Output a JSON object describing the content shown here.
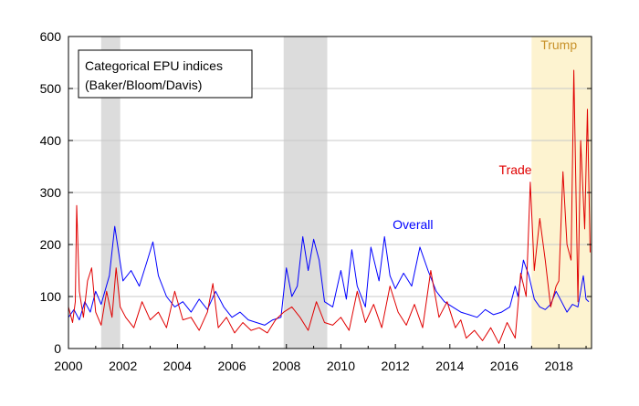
{
  "chart_data": {
    "type": "line",
    "title": "",
    "xlabel": "",
    "ylabel": "",
    "legend_box": {
      "line1": "Categorical EPU indices",
      "line2": "(Baker/Bloom/Davis)"
    },
    "xlim": [
      2000,
      2019.2
    ],
    "ylim": [
      0,
      600
    ],
    "x_ticks": [
      "2000",
      "2002",
      "2004",
      "2006",
      "2008",
      "2010",
      "2012",
      "2014",
      "2016",
      "2018"
    ],
    "y_ticks": [
      "0",
      "100",
      "200",
      "300",
      "400",
      "500",
      "600"
    ],
    "grid": "horizontal",
    "recession_shading": [
      {
        "start": 2001.2,
        "end": 2001.9,
        "color": "#dcdcdc"
      },
      {
        "start": 2007.9,
        "end": 2009.5,
        "color": "#dcdcdc"
      }
    ],
    "regime_shading": {
      "start": 2017.0,
      "end": 2019.2,
      "color": "#fdf3d0",
      "label": "Trump",
      "label_color": "#c8922a"
    },
    "annotations": [
      {
        "text": "Overall",
        "color": "#0000ff",
        "x": 2011.9,
        "y": 230
      },
      {
        "text": "Trade",
        "color": "#e00000",
        "x": 2015.8,
        "y": 335
      }
    ],
    "series": [
      {
        "color": "#0000ff",
        "x": [
          2000.0,
          2000.2,
          2000.4,
          2000.6,
          2000.8,
          2001.0,
          2001.2,
          2001.5,
          2001.7,
          2001.8,
          2002.0,
          2002.3,
          2002.6,
          2002.9,
          2003.1,
          2003.3,
          2003.6,
          2003.9,
          2004.2,
          2004.5,
          2004.8,
          2005.1,
          2005.4,
          2005.7,
          2006.0,
          2006.3,
          2006.6,
          2006.9,
          2007.2,
          2007.5,
          2007.8,
          2008.0,
          2008.2,
          2008.4,
          2008.6,
          2008.8,
          2009.0,
          2009.2,
          2009.4,
          2009.7,
          2010.0,
          2010.2,
          2010.4,
          2010.6,
          2010.9,
          2011.1,
          2011.4,
          2011.6,
          2011.8,
          2012.0,
          2012.3,
          2012.6,
          2012.9,
          2013.2,
          2013.5,
          2013.8,
          2014.1,
          2014.4,
          2014.7,
          2015.0,
          2015.3,
          2015.6,
          2015.9,
          2016.2,
          2016.4,
          2016.5,
          2016.7,
          2016.9,
          2017.1,
          2017.3,
          2017.5,
          2017.7,
          2017.9,
          2018.1,
          2018.3,
          2018.5,
          2018.7,
          2018.9,
          2019.0,
          2019.1
        ],
        "values": [
          60,
          75,
          55,
          90,
          70,
          110,
          85,
          140,
          235,
          200,
          130,
          150,
          120,
          170,
          205,
          140,
          100,
          80,
          90,
          70,
          95,
          75,
          110,
          80,
          60,
          70,
          55,
          50,
          45,
          55,
          60,
          155,
          100,
          120,
          215,
          150,
          210,
          170,
          90,
          80,
          150,
          95,
          190,
          120,
          80,
          195,
          130,
          215,
          140,
          115,
          145,
          120,
          195,
          150,
          110,
          90,
          80,
          70,
          65,
          60,
          75,
          65,
          70,
          80,
          120,
          100,
          170,
          140,
          95,
          80,
          75,
          85,
          110,
          90,
          70,
          85,
          80,
          140,
          95,
          90
        ]
      },
      {
        "color": "#e00000",
        "x": [
          2000.0,
          2000.15,
          2000.25,
          2000.3,
          2000.4,
          2000.55,
          2000.7,
          2000.85,
          2001.0,
          2001.2,
          2001.4,
          2001.6,
          2001.75,
          2001.9,
          2002.1,
          2002.4,
          2002.7,
          2003.0,
          2003.3,
          2003.6,
          2003.9,
          2004.2,
          2004.5,
          2004.8,
          2005.1,
          2005.3,
          2005.5,
          2005.8,
          2006.1,
          2006.4,
          2006.7,
          2007.0,
          2007.3,
          2007.6,
          2007.9,
          2008.2,
          2008.5,
          2008.8,
          2009.1,
          2009.4,
          2009.7,
          2010.0,
          2010.3,
          2010.6,
          2010.9,
          2011.2,
          2011.5,
          2011.8,
          2012.1,
          2012.4,
          2012.7,
          2013.0,
          2013.3,
          2013.6,
          2013.9,
          2014.2,
          2014.4,
          2014.6,
          2014.9,
          2015.2,
          2015.5,
          2015.8,
          2016.1,
          2016.4,
          2016.6,
          2016.8,
          2016.95,
          2017.1,
          2017.3,
          2017.5,
          2017.7,
          2017.9,
          2018.0,
          2018.15,
          2018.3,
          2018.45,
          2018.55,
          2018.7,
          2018.8,
          2018.95,
          2019.05,
          2019.15
        ],
        "values": [
          80,
          50,
          90,
          275,
          110,
          60,
          130,
          155,
          70,
          45,
          110,
          60,
          155,
          80,
          60,
          40,
          90,
          55,
          70,
          40,
          110,
          55,
          60,
          35,
          70,
          125,
          40,
          60,
          30,
          50,
          35,
          40,
          30,
          55,
          70,
          80,
          60,
          35,
          90,
          50,
          45,
          60,
          35,
          110,
          50,
          85,
          40,
          120,
          70,
          45,
          85,
          40,
          150,
          60,
          90,
          40,
          55,
          20,
          35,
          15,
          40,
          10,
          50,
          20,
          145,
          100,
          320,
          150,
          250,
          170,
          80,
          120,
          130,
          340,
          200,
          170,
          535,
          90,
          400,
          230,
          460,
          185
        ]
      }
    ]
  }
}
